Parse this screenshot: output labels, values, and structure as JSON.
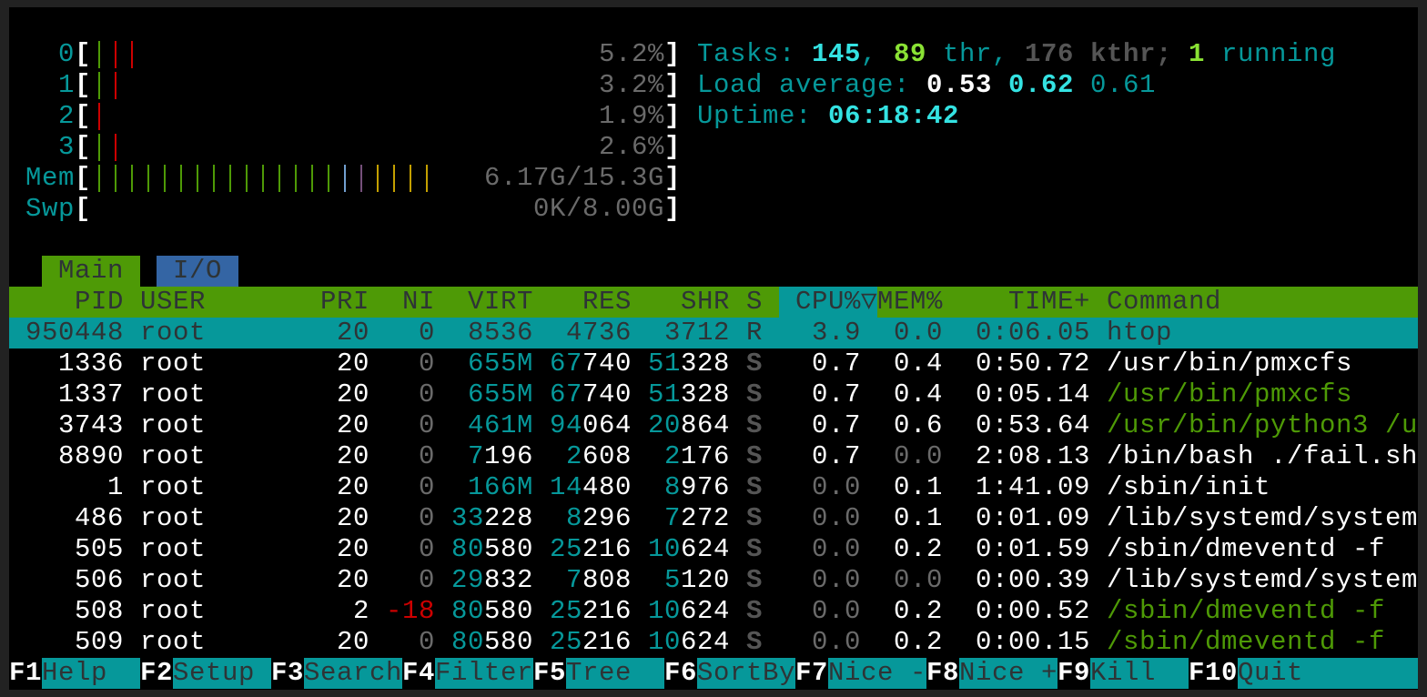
{
  "colors": {
    "teal": "#06989a",
    "cyan": "#34e2e2",
    "green": "#4e9a06",
    "blue": "#3465a4",
    "purple": "#75507b",
    "yellow": "#c4a000",
    "red": "#cc0000"
  },
  "meters": {
    "cpus": [
      {
        "label": "0",
        "value": "5.2%",
        "bars": [
          "normal",
          "kernel",
          "kernel"
        ]
      },
      {
        "label": "1",
        "value": "3.2%",
        "bars": [
          "normal",
          "kernel"
        ]
      },
      {
        "label": "2",
        "value": "1.9%",
        "bars": [
          "kernel"
        ]
      },
      {
        "label": "3",
        "value": "2.6%",
        "bars": [
          "normal",
          "kernel"
        ]
      }
    ],
    "mem": {
      "label": "Mem",
      "value": "6.17G/15.3G",
      "bars": {
        "used": 15,
        "buffers": 1,
        "shared": 1,
        "cache": 4
      }
    },
    "swp": {
      "label": "Swp",
      "value": "0K/8.00G"
    }
  },
  "summary": {
    "tasks_label": "Tasks: ",
    "tasks": "145",
    ", ": ", ",
    "threads": "89",
    "thr_label": " thr, ",
    "kthreads": "176",
    "kthr_label": " kthr; ",
    "running": "1",
    "running_label": " running",
    "load_label": "Load average: ",
    "load1": "0.53",
    "load5": "0.62",
    "load15": "0.61",
    "uptime_label": "Uptime: ",
    "uptime": "06:18:42"
  },
  "tabs": [
    {
      "label": "Main",
      "active": true
    },
    {
      "label": "I/O",
      "active": false
    }
  ],
  "columns": [
    "PID",
    "USER",
    "PRI",
    "NI",
    "VIRT",
    "RES",
    "SHR",
    "S",
    "CPU%",
    "▽",
    "MEM%",
    "TIME+",
    "Command"
  ],
  "sort_column": "CPU%",
  "processes": [
    {
      "pid": "950448",
      "user": "root",
      "pri": "20",
      "ni": "0",
      "virt": "8536",
      "res": "4736",
      "shr": "3712",
      "s": "R",
      "cpu": "3.9",
      "mem": "0.0",
      "time": "0:06.05",
      "cmd": "htop",
      "selected": true
    },
    {
      "pid": "1336",
      "user": "root",
      "pri": "20",
      "ni": "0",
      "virt": "655M",
      "res": "67740",
      "shr": "51328",
      "s": "S",
      "cpu": "0.7",
      "mem": "0.4",
      "time": "0:50.72",
      "cmd": "/usr/bin/pmxcfs",
      "thread": false
    },
    {
      "pid": "1337",
      "user": "root",
      "pri": "20",
      "ni": "0",
      "virt": "655M",
      "res": "67740",
      "shr": "51328",
      "s": "S",
      "cpu": "0.7",
      "mem": "0.4",
      "time": "0:05.14",
      "cmd": "/usr/bin/pmxcfs",
      "thread": true
    },
    {
      "pid": "3743",
      "user": "root",
      "pri": "20",
      "ni": "0",
      "virt": "461M",
      "res": "94064",
      "shr": "20864",
      "s": "S",
      "cpu": "0.7",
      "mem": "0.6",
      "time": "0:53.64",
      "cmd": "/usr/bin/python3 /u",
      "thread": true
    },
    {
      "pid": "8890",
      "user": "root",
      "pri": "20",
      "ni": "0",
      "virt": "7196",
      "res": "2608",
      "shr": "2176",
      "s": "S",
      "cpu": "0.7",
      "mem": "0.0",
      "time": "2:08.13",
      "cmd": "/bin/bash ./fail.sh",
      "thread": false
    },
    {
      "pid": "1",
      "user": "root",
      "pri": "20",
      "ni": "0",
      "virt": "166M",
      "res": "14480",
      "shr": "8976",
      "s": "S",
      "cpu": "0.0",
      "mem": "0.1",
      "time": "1:41.09",
      "cmd": "/sbin/init",
      "thread": false
    },
    {
      "pid": "486",
      "user": "root",
      "pri": "20",
      "ni": "0",
      "virt": "33228",
      "res": "8296",
      "shr": "7272",
      "s": "S",
      "cpu": "0.0",
      "mem": "0.1",
      "time": "0:01.09",
      "cmd": "/lib/systemd/system",
      "thread": false
    },
    {
      "pid": "505",
      "user": "root",
      "pri": "20",
      "ni": "0",
      "virt": "80580",
      "res": "25216",
      "shr": "10624",
      "s": "S",
      "cpu": "0.0",
      "mem": "0.2",
      "time": "0:01.59",
      "cmd": "/sbin/dmeventd -f",
      "thread": false
    },
    {
      "pid": "506",
      "user": "root",
      "pri": "20",
      "ni": "0",
      "virt": "29832",
      "res": "7808",
      "shr": "5120",
      "s": "S",
      "cpu": "0.0",
      "mem": "0.0",
      "time": "0:00.39",
      "cmd": "/lib/systemd/system",
      "thread": false
    },
    {
      "pid": "508",
      "user": "root",
      "pri": "2",
      "ni": "-18",
      "virt": "80580",
      "res": "25216",
      "shr": "10624",
      "s": "S",
      "cpu": "0.0",
      "mem": "0.2",
      "time": "0:00.52",
      "cmd": "/sbin/dmeventd -f",
      "thread": true
    },
    {
      "pid": "509",
      "user": "root",
      "pri": "20",
      "ni": "0",
      "virt": "80580",
      "res": "25216",
      "shr": "10624",
      "s": "S",
      "cpu": "0.0",
      "mem": "0.2",
      "time": "0:00.15",
      "cmd": "/sbin/dmeventd -f",
      "thread": true
    }
  ],
  "function_keys": [
    {
      "key": "F1",
      "label": "Help"
    },
    {
      "key": "F2",
      "label": "Setup"
    },
    {
      "key": "F3",
      "label": "Search"
    },
    {
      "key": "F4",
      "label": "Filter"
    },
    {
      "key": "F5",
      "label": "Tree"
    },
    {
      "key": "F6",
      "label": "SortBy"
    },
    {
      "key": "F7",
      "label": "Nice -"
    },
    {
      "key": "F8",
      "label": "Nice +"
    },
    {
      "key": "F9",
      "label": "Kill"
    },
    {
      "key": "F10",
      "label": "Quit"
    }
  ]
}
